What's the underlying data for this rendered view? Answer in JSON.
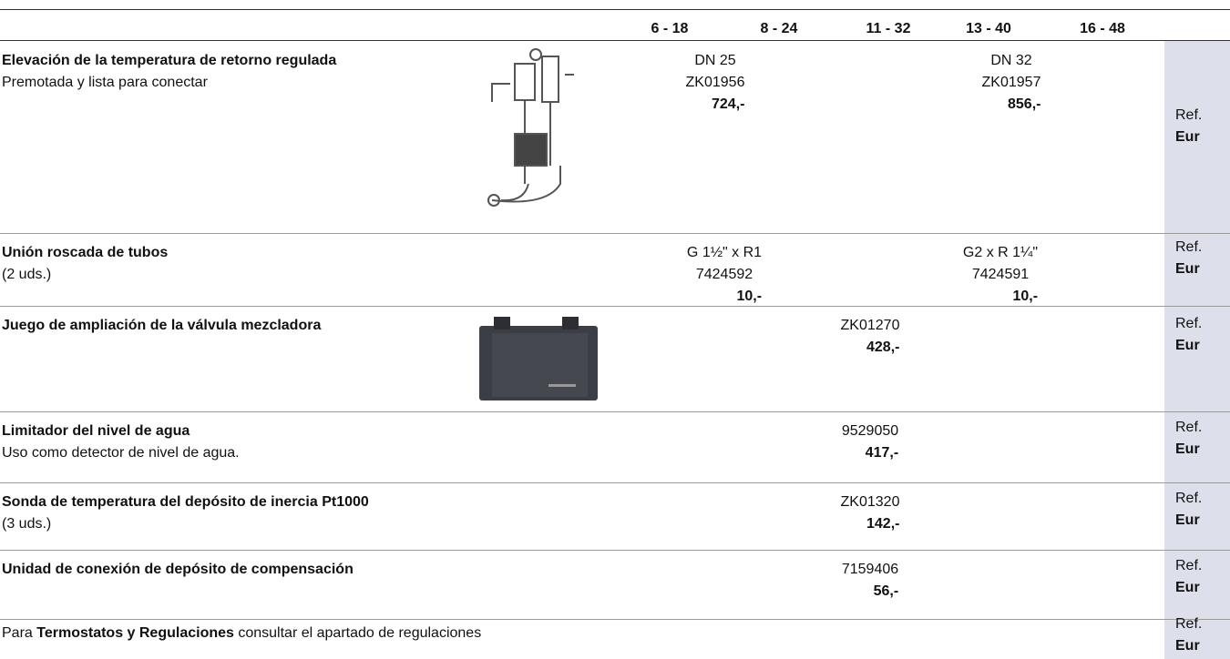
{
  "header": {
    "columns": [
      "6 - 18",
      "8 - 24",
      "11 - 32",
      "13 - 40",
      "16 - 48"
    ]
  },
  "rows": [
    {
      "title": "Elevación de la temperatura de retorno regulada",
      "subtitle": "Premotada y lista para conectar",
      "offers": [
        {
          "size": "DN 25",
          "ref": "ZK01956",
          "price": "724,-"
        },
        {
          "size": "DN 32",
          "ref": "ZK01957",
          "price": "856,-"
        }
      ],
      "ref_label": "Ref.",
      "price_label": "Eur"
    },
    {
      "title": "Unión roscada de tubos",
      "subtitle": "(2 uds.)",
      "offers": [
        {
          "size": "G 1½\" x R1",
          "ref": "7424592",
          "price": "10,-"
        },
        {
          "size": "G2 x R 1¼\"",
          "ref": "7424591",
          "price": "10,-"
        }
      ],
      "ref_label": "Ref.",
      "price_label": "Eur"
    },
    {
      "title": "Juego de ampliación de la válvula mezcladora",
      "offers": [
        {
          "ref": "ZK01270",
          "price": "428,-"
        }
      ],
      "ref_label": "Ref.",
      "price_label": "Eur"
    },
    {
      "title": "Limitador del nivel de agua",
      "subtitle": "Uso como detector de nivel de agua.",
      "offers": [
        {
          "ref": "9529050",
          "price": "417,-"
        }
      ],
      "ref_label": "Ref.",
      "price_label": "Eur"
    },
    {
      "title": "Sonda de temperatura del depósito de inercia Pt1000",
      "subtitle": "(3 uds.)",
      "offers": [
        {
          "ref": "ZK01320",
          "price": "142,-"
        }
      ],
      "ref_label": "Ref.",
      "price_label": "Eur"
    },
    {
      "title": "Unidad de conexión de depósito de compensación",
      "offers": [
        {
          "ref": "7159406",
          "price": "56,-"
        }
      ],
      "ref_label": "Ref.",
      "price_label": "Eur"
    }
  ],
  "note": {
    "before": "Para ",
    "bold": "Termostatos y Regulaciones",
    "after": " consultar el apartado de regulaciones",
    "ref_label": "Ref.",
    "price_label": "Eur"
  }
}
